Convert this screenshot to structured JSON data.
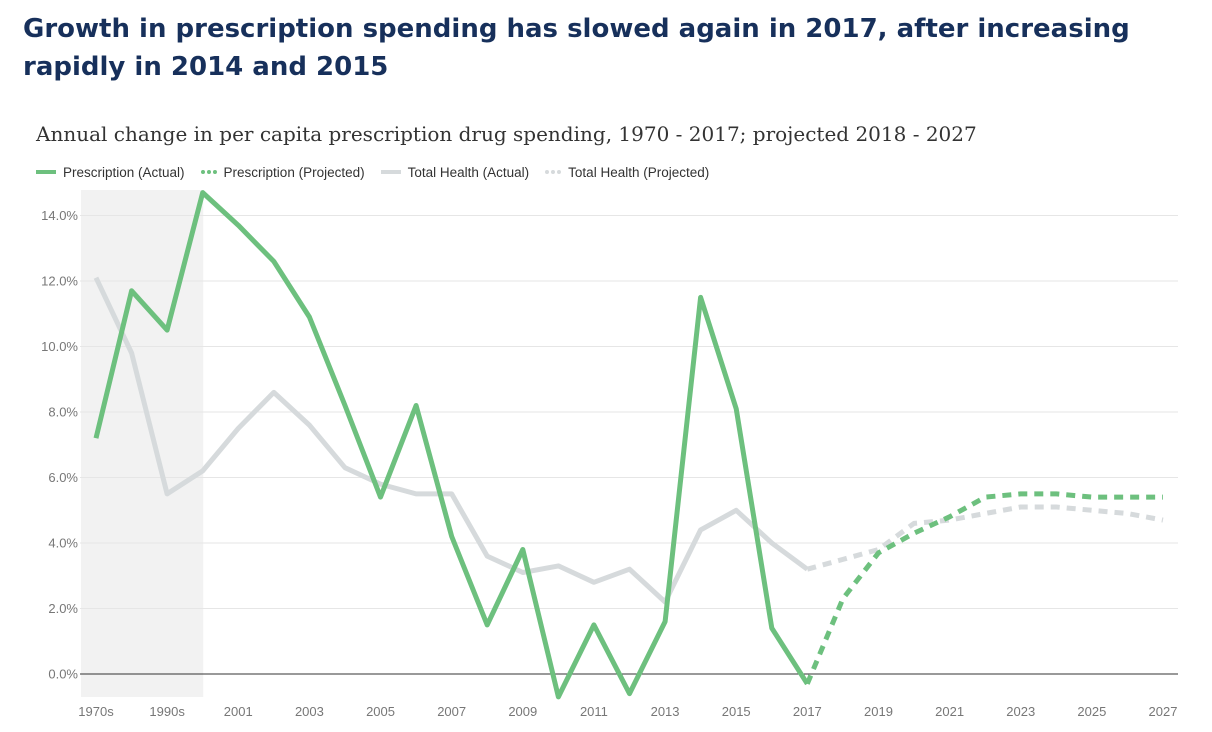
{
  "headline": "Growth in prescription spending has slowed again in 2017, after increasing rapidly in 2014 and 2015",
  "colors": {
    "prescription": "#6dc07e",
    "total_health": "#d6dadc",
    "shade": "#f2f2f2",
    "grid": "#e6e6e6",
    "baseline": "#333333",
    "headline": "#17305b"
  },
  "chart_data": {
    "type": "line",
    "title": "Annual change in per capita prescription drug spending, 1970 - 2017; projected 2018 - 2027",
    "xlabel": "",
    "ylabel": "",
    "x": [
      "1970s",
      "1980s",
      "1990s",
      "2000",
      "2001",
      "2002",
      "2003",
      "2004",
      "2005",
      "2006",
      "2007",
      "2008",
      "2009",
      "2010",
      "2011",
      "2012",
      "2013",
      "2014",
      "2015",
      "2016",
      "2017",
      "2018",
      "2019",
      "2020",
      "2021",
      "2022",
      "2023",
      "2024",
      "2025",
      "2026",
      "2027"
    ],
    "x_tick_labels": [
      "1970s",
      "1990s",
      "2001",
      "2003",
      "2005",
      "2007",
      "2009",
      "2011",
      "2013",
      "2015",
      "2017",
      "2019",
      "2021",
      "2023",
      "2025",
      "2027"
    ],
    "ylim": [
      -0.7,
      14.7
    ],
    "y_ticks": [
      0,
      2,
      4,
      6,
      8,
      10,
      12,
      14
    ],
    "y_tick_labels": [
      "0.0%",
      "2.0%",
      "4.0%",
      "6.0%",
      "8.0%",
      "10.0%",
      "12.0%",
      "14.0%"
    ],
    "grid": true,
    "legend_position": "top-left",
    "shaded_region": [
      "1970s",
      "2000"
    ],
    "series": [
      {
        "name": "Prescription (Actual)",
        "style": "solid",
        "color": "#6dc07e",
        "x": [
          "1970s",
          "1980s",
          "1990s",
          "2000",
          "2001",
          "2002",
          "2003",
          "2004",
          "2005",
          "2006",
          "2007",
          "2008",
          "2009",
          "2010",
          "2011",
          "2012",
          "2013",
          "2014",
          "2015",
          "2016",
          "2017"
        ],
        "values": [
          7.2,
          11.7,
          10.5,
          14.7,
          13.7,
          12.6,
          10.9,
          8.2,
          5.4,
          8.2,
          4.2,
          1.5,
          3.8,
          -0.7,
          1.5,
          -0.6,
          1.6,
          11.5,
          8.1,
          1.4,
          -0.3
        ]
      },
      {
        "name": "Prescription (Projected)",
        "style": "dashed",
        "color": "#6dc07e",
        "x": [
          "2017",
          "2018",
          "2019",
          "2020",
          "2021",
          "2022",
          "2023",
          "2024",
          "2025",
          "2026",
          "2027"
        ],
        "values": [
          -0.3,
          2.3,
          3.7,
          4.3,
          4.8,
          5.4,
          5.5,
          5.5,
          5.4,
          5.4,
          5.4
        ]
      },
      {
        "name": "Total Health (Actual)",
        "style": "solid",
        "color": "#d6dadc",
        "x": [
          "1970s",
          "1980s",
          "1990s",
          "2000",
          "2001",
          "2002",
          "2003",
          "2004",
          "2005",
          "2006",
          "2007",
          "2008",
          "2009",
          "2010",
          "2011",
          "2012",
          "2013",
          "2014",
          "2015",
          "2016",
          "2017"
        ],
        "values": [
          12.1,
          9.8,
          5.5,
          6.2,
          7.5,
          8.6,
          7.6,
          6.3,
          5.8,
          5.5,
          5.5,
          3.6,
          3.1,
          3.3,
          2.8,
          3.2,
          2.2,
          4.4,
          5.0,
          4.0,
          3.2
        ]
      },
      {
        "name": "Total Health (Projected)",
        "style": "dashed",
        "color": "#d6dadc",
        "x": [
          "2017",
          "2018",
          "2019",
          "2020",
          "2021",
          "2022",
          "2023",
          "2024",
          "2025",
          "2026",
          "2027"
        ],
        "values": [
          3.2,
          3.5,
          3.8,
          4.6,
          4.7,
          4.9,
          5.1,
          5.1,
          5.0,
          4.9,
          4.7
        ]
      }
    ]
  }
}
